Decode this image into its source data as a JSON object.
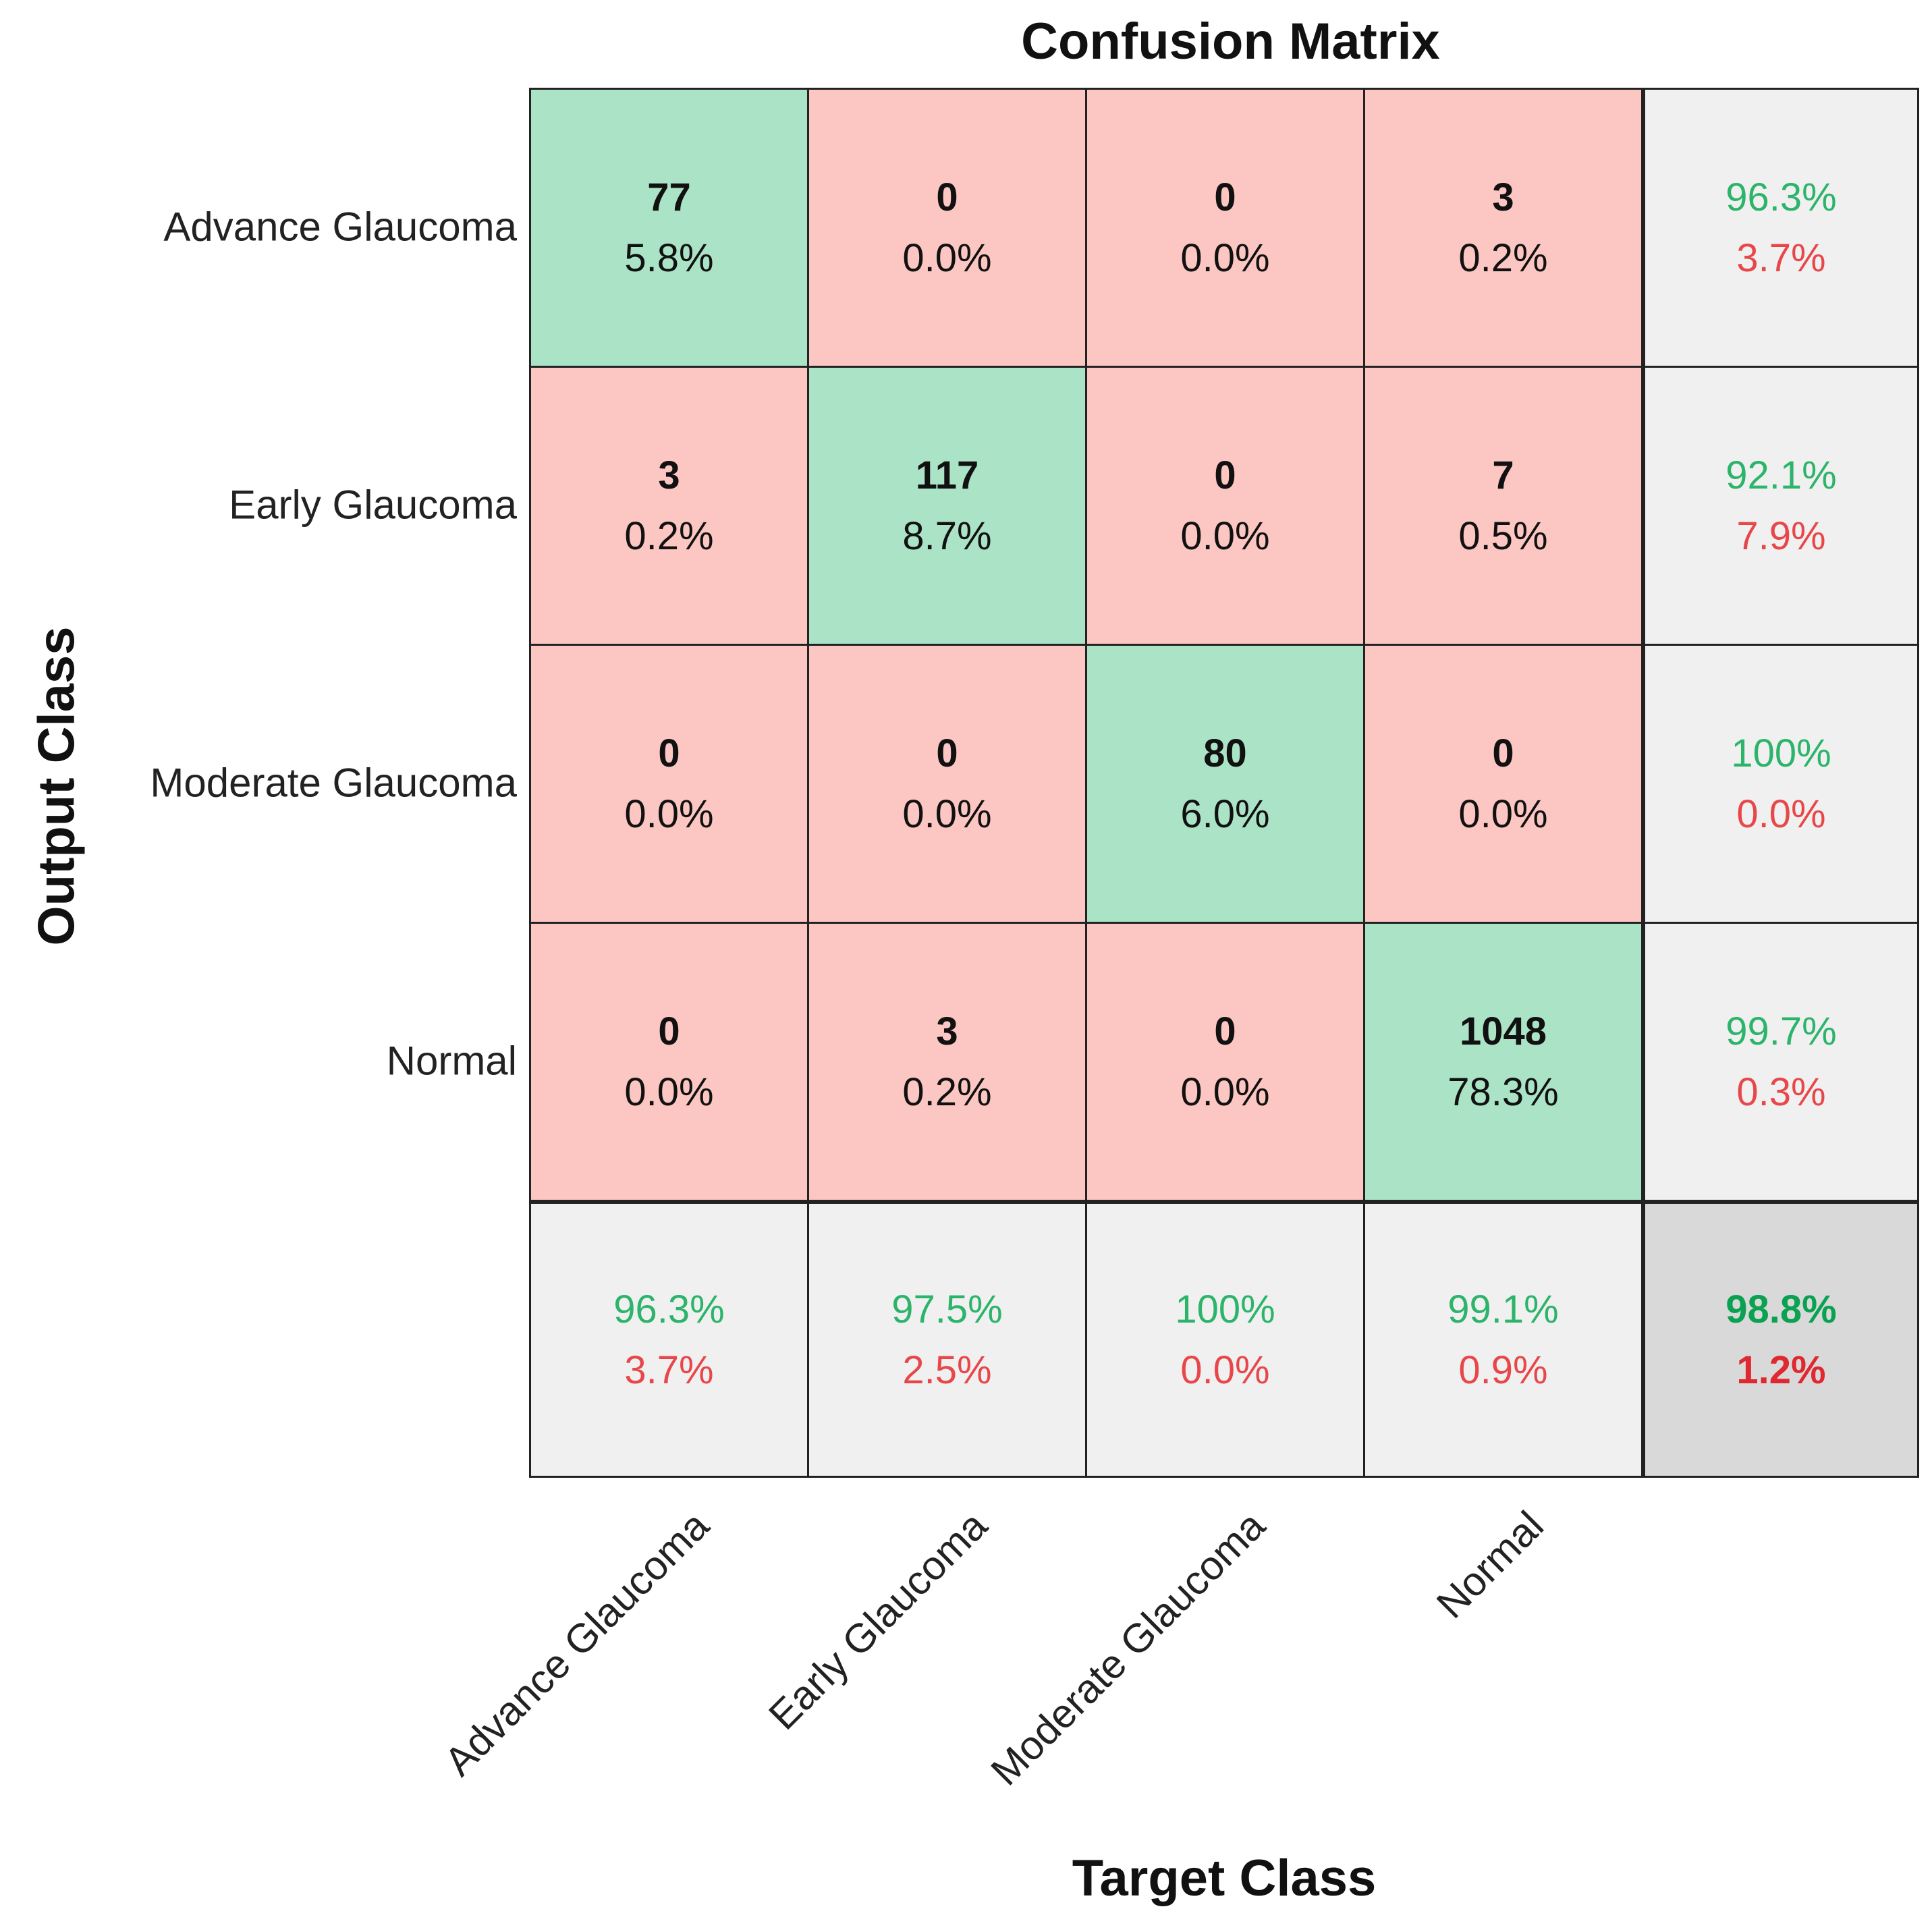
{
  "chart_data": {
    "type": "heatmap",
    "title": "Confusion Matrix",
    "xlabel": "Target Class",
    "ylabel": "Output Class",
    "classes": [
      "Advance Glaucoma",
      "Early Glaucoma",
      "Moderate Glaucoma",
      "Normal"
    ],
    "matrix": [
      [
        77,
        0,
        0,
        3
      ],
      [
        3,
        117,
        0,
        7
      ],
      [
        0,
        0,
        80,
        0
      ],
      [
        0,
        3,
        0,
        1048
      ]
    ],
    "matrix_percent": [
      [
        "5.8%",
        "0.0%",
        "0.0%",
        "0.2%"
      ],
      [
        "0.2%",
        "8.7%",
        "0.0%",
        "0.5%"
      ],
      [
        "0.0%",
        "0.0%",
        "6.0%",
        "0.0%"
      ],
      [
        "0.0%",
        "0.2%",
        "0.0%",
        "78.3%"
      ]
    ],
    "row_summary": [
      {
        "correct": "96.3%",
        "error": "3.7%"
      },
      {
        "correct": "92.1%",
        "error": "7.9%"
      },
      {
        "correct": "100%",
        "error": "0.0%"
      },
      {
        "correct": "99.7%",
        "error": "0.3%"
      }
    ],
    "col_summary": [
      {
        "correct": "96.3%",
        "error": "3.7%"
      },
      {
        "correct": "97.5%",
        "error": "2.5%"
      },
      {
        "correct": "100%",
        "error": "0.0%"
      },
      {
        "correct": "99.1%",
        "error": "0.9%"
      }
    ],
    "overall": {
      "correct": "98.8%",
      "error": "1.2%"
    },
    "colors": {
      "diagonal": "#abe3c6",
      "off_diagonal": "#fcc6c2",
      "summary": "#f0f0f0",
      "overall": "#d9d9d9",
      "correct_text": "#2bb46a",
      "error_text": "#e8474a",
      "overall_correct_text": "#0aa150",
      "overall_error_text": "#e02830"
    }
  }
}
